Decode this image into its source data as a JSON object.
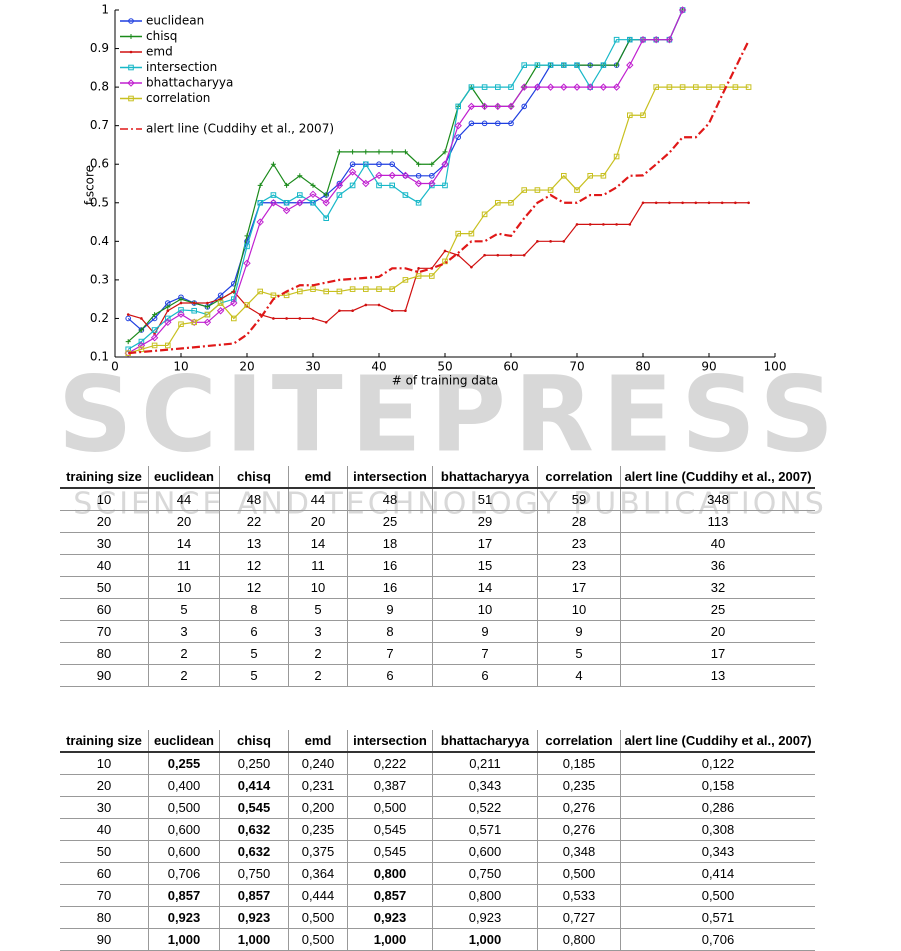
{
  "chart_data": {
    "type": "line",
    "xlabel": "# of training data",
    "ylabel": "f-score",
    "xlim": [
      0,
      100
    ],
    "xticks": [
      0,
      10,
      20,
      30,
      40,
      50,
      60,
      70,
      80,
      90,
      100
    ],
    "ylim": [
      0.1,
      1
    ],
    "yticks": [
      0.1,
      0.2,
      0.3,
      0.4,
      0.5,
      0.6,
      0.7,
      0.8,
      0.9,
      1
    ],
    "legend": "upper left",
    "series": [
      {
        "name": "euclidean",
        "color": "#1f3fe0",
        "marker": "circle",
        "dash": "solid",
        "x": [
          2,
          4,
          6,
          8,
          10,
          12,
          14,
          16,
          18,
          20,
          22,
          24,
          26,
          28,
          30,
          32,
          34,
          36,
          38,
          40,
          42,
          44,
          46,
          48,
          50,
          52,
          54,
          56,
          58,
          60,
          62,
          64,
          66,
          68,
          70,
          72,
          74,
          76,
          78,
          80,
          82,
          84,
          86
        ],
        "values": [
          0.2,
          0.17,
          0.2,
          0.24,
          0.255,
          0.24,
          0.23,
          0.26,
          0.29,
          0.4,
          0.5,
          0.5,
          0.5,
          0.5,
          0.5,
          0.52,
          0.55,
          0.6,
          0.6,
          0.6,
          0.6,
          0.57,
          0.57,
          0.57,
          0.6,
          0.67,
          0.706,
          0.706,
          0.706,
          0.706,
          0.75,
          0.8,
          0.857,
          0.857,
          0.857,
          0.857,
          0.857,
          0.857,
          0.923,
          0.923,
          0.923,
          0.923,
          1.0
        ]
      },
      {
        "name": "chisq",
        "color": "#1a8a1a",
        "marker": "plus",
        "dash": "solid",
        "x": [
          2,
          4,
          6,
          8,
          10,
          12,
          14,
          16,
          18,
          20,
          22,
          24,
          26,
          28,
          30,
          32,
          34,
          36,
          38,
          40,
          42,
          44,
          46,
          48,
          50,
          52,
          54,
          56,
          58,
          60,
          62,
          64,
          66,
          68,
          70,
          72,
          74,
          76,
          78,
          80,
          82,
          84,
          86
        ],
        "values": [
          0.14,
          0.17,
          0.21,
          0.23,
          0.25,
          0.24,
          0.23,
          0.25,
          0.27,
          0.414,
          0.545,
          0.6,
          0.545,
          0.57,
          0.545,
          0.52,
          0.632,
          0.632,
          0.632,
          0.632,
          0.632,
          0.632,
          0.6,
          0.6,
          0.632,
          0.75,
          0.8,
          0.75,
          0.75,
          0.75,
          0.8,
          0.857,
          0.857,
          0.857,
          0.857,
          0.857,
          0.857,
          0.857,
          0.923,
          0.923,
          0.923,
          0.923,
          1.0
        ]
      },
      {
        "name": "emd",
        "color": "#d01010",
        "marker": "dot",
        "dash": "solid",
        "x": [
          2,
          4,
          6,
          8,
          10,
          12,
          14,
          16,
          18,
          20,
          22,
          24,
          26,
          28,
          30,
          32,
          34,
          36,
          38,
          40,
          42,
          44,
          46,
          48,
          50,
          52,
          54,
          56,
          58,
          60,
          62,
          64,
          66,
          68,
          70,
          72,
          74,
          76,
          78,
          80,
          82,
          84,
          86,
          88,
          90,
          92,
          94,
          96
        ],
        "values": [
          0.21,
          0.2,
          0.16,
          0.22,
          0.24,
          0.24,
          0.24,
          0.25,
          0.27,
          0.231,
          0.21,
          0.2,
          0.2,
          0.2,
          0.2,
          0.19,
          0.22,
          0.22,
          0.235,
          0.235,
          0.22,
          0.22,
          0.33,
          0.33,
          0.375,
          0.364,
          0.333,
          0.364,
          0.364,
          0.364,
          0.364,
          0.4,
          0.4,
          0.4,
          0.444,
          0.444,
          0.444,
          0.444,
          0.444,
          0.5,
          0.5,
          0.5,
          0.5,
          0.5,
          0.5,
          0.5,
          0.5,
          0.5
        ]
      },
      {
        "name": "intersection",
        "color": "#18b8c8",
        "marker": "square",
        "dash": "solid",
        "x": [
          2,
          4,
          6,
          8,
          10,
          12,
          14,
          16,
          18,
          20,
          22,
          24,
          26,
          28,
          30,
          32,
          34,
          36,
          38,
          40,
          42,
          44,
          46,
          48,
          50,
          52,
          54,
          56,
          58,
          60,
          62,
          64,
          66,
          68,
          70,
          72,
          74,
          76,
          78,
          80,
          82,
          84,
          86
        ],
        "values": [
          0.12,
          0.14,
          0.17,
          0.2,
          0.222,
          0.22,
          0.21,
          0.24,
          0.25,
          0.387,
          0.5,
          0.52,
          0.5,
          0.52,
          0.5,
          0.46,
          0.52,
          0.545,
          0.6,
          0.545,
          0.545,
          0.52,
          0.5,
          0.545,
          0.545,
          0.75,
          0.8,
          0.8,
          0.8,
          0.8,
          0.857,
          0.857,
          0.857,
          0.857,
          0.857,
          0.8,
          0.857,
          0.923,
          0.923,
          0.923,
          0.923,
          0.923,
          1.0
        ]
      },
      {
        "name": "bhattacharyya",
        "color": "#c020d0",
        "marker": "diamond",
        "dash": "solid",
        "x": [
          2,
          4,
          6,
          8,
          10,
          12,
          14,
          16,
          18,
          20,
          22,
          24,
          26,
          28,
          30,
          32,
          34,
          36,
          38,
          40,
          42,
          44,
          46,
          48,
          50,
          52,
          54,
          56,
          58,
          60,
          62,
          64,
          66,
          68,
          70,
          72,
          74,
          76,
          78,
          80,
          82,
          84,
          86
        ],
        "values": [
          0.11,
          0.13,
          0.15,
          0.19,
          0.211,
          0.19,
          0.19,
          0.22,
          0.24,
          0.343,
          0.45,
          0.5,
          0.48,
          0.5,
          0.522,
          0.5,
          0.545,
          0.58,
          0.55,
          0.571,
          0.571,
          0.571,
          0.55,
          0.55,
          0.6,
          0.7,
          0.75,
          0.75,
          0.75,
          0.75,
          0.8,
          0.8,
          0.8,
          0.8,
          0.8,
          0.8,
          0.8,
          0.8,
          0.857,
          0.923,
          0.923,
          0.923,
          1.0
        ]
      },
      {
        "name": "correlation",
        "color": "#c8c020",
        "marker": "square",
        "dash": "solid",
        "x": [
          2,
          4,
          6,
          8,
          10,
          12,
          14,
          16,
          18,
          20,
          22,
          24,
          26,
          28,
          30,
          32,
          34,
          36,
          38,
          40,
          42,
          44,
          46,
          48,
          50,
          52,
          54,
          56,
          58,
          60,
          62,
          64,
          66,
          68,
          70,
          72,
          74,
          76,
          78,
          80,
          82,
          84,
          86,
          88,
          90,
          92,
          94,
          96
        ],
        "values": [
          0.11,
          0.12,
          0.13,
          0.13,
          0.185,
          0.19,
          0.21,
          0.24,
          0.2,
          0.235,
          0.27,
          0.26,
          0.26,
          0.27,
          0.276,
          0.27,
          0.27,
          0.276,
          0.276,
          0.276,
          0.276,
          0.3,
          0.31,
          0.31,
          0.348,
          0.42,
          0.42,
          0.47,
          0.5,
          0.5,
          0.533,
          0.533,
          0.533,
          0.57,
          0.533,
          0.57,
          0.57,
          0.62,
          0.727,
          0.727,
          0.8,
          0.8,
          0.8,
          0.8,
          0.8,
          0.8,
          0.8,
          0.8
        ]
      },
      {
        "name": "alert line (Cuddihy et al., 2007)",
        "color": "#e01818",
        "marker": "none",
        "dash": "dashdot",
        "x": [
          2,
          10,
          18,
          20,
          22,
          24,
          26,
          28,
          30,
          34,
          40,
          42,
          44,
          46,
          48,
          50,
          52,
          54,
          56,
          58,
          60,
          62,
          64,
          66,
          68,
          70,
          72,
          74,
          76,
          78,
          80,
          82,
          84,
          86,
          88,
          90,
          92,
          94,
          96
        ],
        "values": [
          0.11,
          0.122,
          0.135,
          0.158,
          0.2,
          0.25,
          0.27,
          0.286,
          0.286,
          0.3,
          0.308,
          0.33,
          0.33,
          0.32,
          0.33,
          0.343,
          0.37,
          0.4,
          0.4,
          0.42,
          0.414,
          0.46,
          0.5,
          0.52,
          0.5,
          0.5,
          0.52,
          0.52,
          0.54,
          0.57,
          0.571,
          0.6,
          0.63,
          0.67,
          0.67,
          0.706,
          0.78,
          0.85,
          0.92
        ]
      }
    ]
  },
  "watermark": {
    "title": "SCITEPRESS",
    "subtitle": "SCIENCE AND TECHNOLOGY PUBLICATIONS"
  },
  "tables": [
    {
      "header": [
        "training size",
        "euclidean",
        "chisq",
        "emd",
        "intersection",
        "bhattacharyya",
        "correlation",
        "alert line (Cuddihy et al., 2007)"
      ],
      "rows": [
        [
          10,
          44,
          48,
          44,
          48,
          51,
          59,
          348
        ],
        [
          20,
          20,
          22,
          20,
          25,
          29,
          28,
          113
        ],
        [
          30,
          14,
          13,
          14,
          18,
          17,
          23,
          40
        ],
        [
          40,
          11,
          12,
          11,
          16,
          15,
          23,
          36
        ],
        [
          50,
          10,
          12,
          10,
          16,
          14,
          17,
          32
        ],
        [
          60,
          5,
          8,
          5,
          9,
          10,
          10,
          25
        ],
        [
          70,
          3,
          6,
          3,
          8,
          9,
          9,
          20
        ],
        [
          80,
          2,
          5,
          2,
          7,
          7,
          5,
          17
        ],
        [
          90,
          2,
          5,
          2,
          6,
          6,
          4,
          13
        ]
      ],
      "bold_columns": [
        [],
        [],
        [],
        [],
        [],
        [],
        [],
        [],
        []
      ]
    },
    {
      "header": [
        "training size",
        "euclidean",
        "chisq",
        "emd",
        "intersection",
        "bhattacharyya",
        "correlation",
        "alert line (Cuddihy et al., 2007)"
      ],
      "rows": [
        [
          "10",
          "0,255",
          "0,250",
          "0,240",
          "0,222",
          "0,211",
          "0,185",
          "0,122"
        ],
        [
          "20",
          "0,400",
          "0,414",
          "0,231",
          "0,387",
          "0,343",
          "0,235",
          "0,158"
        ],
        [
          "30",
          "0,500",
          "0,545",
          "0,200",
          "0,500",
          "0,522",
          "0,276",
          "0,286"
        ],
        [
          "40",
          "0,600",
          "0,632",
          "0,235",
          "0,545",
          "0,571",
          "0,276",
          "0,308"
        ],
        [
          "50",
          "0,600",
          "0,632",
          "0,375",
          "0,545",
          "0,600",
          "0,348",
          "0,343"
        ],
        [
          "60",
          "0,706",
          "0,750",
          "0,364",
          "0,800",
          "0,750",
          "0,500",
          "0,414"
        ],
        [
          "70",
          "0,857",
          "0,857",
          "0,444",
          "0,857",
          "0,800",
          "0,533",
          "0,500"
        ],
        [
          "80",
          "0,923",
          "0,923",
          "0,500",
          "0,923",
          "0,923",
          "0,727",
          "0,571"
        ],
        [
          "90",
          "1,000",
          "1,000",
          "0,500",
          "1,000",
          "1,000",
          "0,800",
          "0,706"
        ]
      ],
      "bold_columns": [
        [
          1
        ],
        [
          2
        ],
        [
          2
        ],
        [
          2
        ],
        [
          2
        ],
        [
          4
        ],
        [
          1,
          2,
          4
        ],
        [
          1,
          2,
          4
        ],
        [
          1,
          2,
          4,
          5
        ]
      ]
    }
  ]
}
